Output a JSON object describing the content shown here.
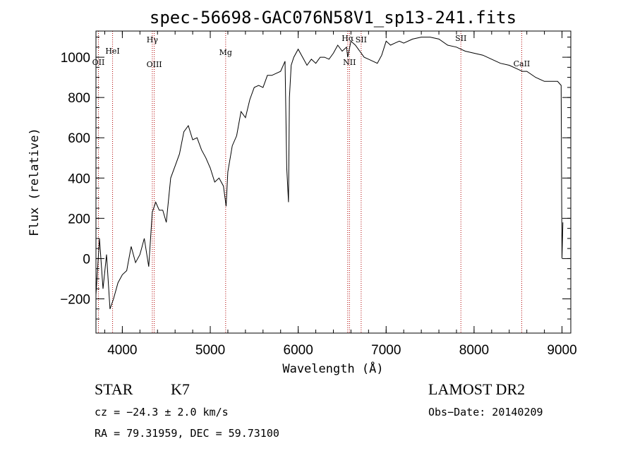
{
  "chart_data": {
    "type": "line",
    "title": "spec-56698-GAC076N58V1_sp13-241.fits",
    "xlabel": "Wavelength (Å)",
    "ylabel": "Flux (relative)",
    "xlim": [
      3700,
      9100
    ],
    "ylim": [
      -370,
      1130
    ],
    "xticks": [
      4000,
      5000,
      6000,
      7000,
      8000,
      9000
    ],
    "yticks": [
      -200,
      0,
      200,
      400,
      600,
      800,
      1000
    ],
    "grid": false,
    "series": [
      {
        "values_described": "flux",
        "x": [
          3700,
          3740,
          3780,
          3820,
          3860,
          3900,
          3950,
          4000,
          4050,
          4100,
          4150,
          4200,
          4250,
          4300,
          4340,
          4380,
          4420,
          4460,
          4500,
          4550,
          4600,
          4650,
          4700,
          4750,
          4800,
          4850,
          4900,
          4950,
          5000,
          5050,
          5100,
          5150,
          5180,
          5200,
          5250,
          5300,
          5350,
          5400,
          5450,
          5500,
          5550,
          5600,
          5650,
          5700,
          5750,
          5800,
          5850,
          5870,
          5890,
          5900,
          5920,
          5950,
          6000,
          6050,
          6100,
          6150,
          6200,
          6250,
          6300,
          6350,
          6400,
          6450,
          6500,
          6550,
          6563,
          6600,
          6650,
          6700,
          6750,
          6800,
          6850,
          6900,
          6950,
          7000,
          7050,
          7100,
          7150,
          7200,
          7300,
          7400,
          7500,
          7600,
          7700,
          7800,
          7850,
          7900,
          8000,
          8100,
          8200,
          8300,
          8400,
          8500,
          8550,
          8600,
          8700,
          8800,
          8900,
          8950,
          8990,
          9000,
          9010
        ],
        "y": [
          -180,
          100,
          -150,
          20,
          -250,
          -200,
          -120,
          -80,
          -60,
          60,
          -20,
          20,
          100,
          -40,
          230,
          280,
          240,
          240,
          180,
          400,
          460,
          520,
          630,
          660,
          590,
          600,
          540,
          500,
          450,
          380,
          400,
          360,
          260,
          430,
          560,
          610,
          730,
          700,
          790,
          850,
          860,
          850,
          910,
          910,
          920,
          930,
          980,
          450,
          280,
          800,
          960,
          1000,
          1040,
          1000,
          960,
          990,
          970,
          1000,
          1000,
          990,
          1020,
          1060,
          1030,
          1050,
          1000,
          1080,
          1060,
          1030,
          1000,
          990,
          980,
          970,
          1010,
          1080,
          1060,
          1070,
          1080,
          1070,
          1090,
          1100,
          1100,
          1090,
          1060,
          1050,
          1040,
          1030,
          1020,
          1010,
          990,
          970,
          960,
          940,
          930,
          930,
          900,
          880,
          880,
          880,
          860,
          0,
          180
        ]
      }
    ],
    "annotations": [
      {
        "label": "OII",
        "x": 3728
      },
      {
        "label": "HeI",
        "x": 3889
      },
      {
        "label": "Hγ",
        "x": 4341
      },
      {
        "label": "OIII",
        "x": 4363
      },
      {
        "label": "Mg",
        "x": 5175
      },
      {
        "label": "Hα",
        "x": 6563
      },
      {
        "label": "NII",
        "x": 6583
      },
      {
        "label": "SII",
        "x": 6716
      },
      {
        "label": "SII",
        "x": 7850
      },
      {
        "label": "CaII",
        "x": 8542
      }
    ]
  },
  "info": {
    "class": "STAR",
    "subclass": "K7",
    "survey": "LAMOST DR2",
    "cz": "cz = −24.3 ± 2.0 km/s",
    "obs_date": "Obs−Date: 20140209",
    "coords": "RA =  79.31959, DEC =  59.73100"
  },
  "colors": {
    "spectrum": "#000000",
    "line_markers": "#b00000"
  }
}
